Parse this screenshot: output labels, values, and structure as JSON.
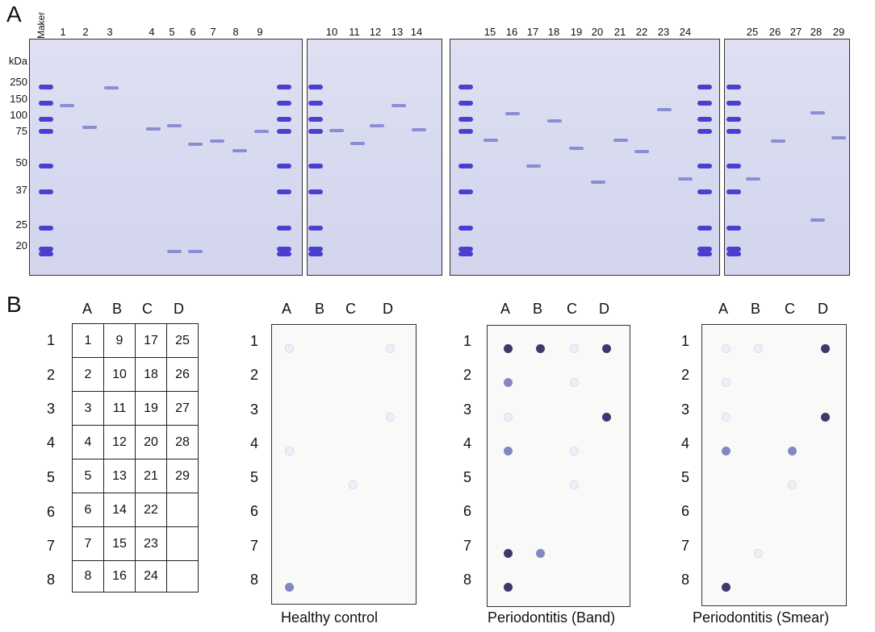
{
  "panel_a": {
    "letter": "A",
    "marker_label": "Maker",
    "unit_label": "kDa",
    "kda_ticks": [
      "250",
      "150",
      "100",
      "75",
      "50",
      "37",
      "25",
      "20"
    ],
    "lane_numbers": [
      "1",
      "2",
      "3",
      "4",
      "5",
      "6",
      "7",
      "8",
      "9",
      "10",
      "11",
      "12",
      "13",
      "14",
      "15",
      "16",
      "17",
      "18",
      "19",
      "20",
      "21",
      "22",
      "23",
      "24",
      "25",
      "26",
      "27",
      "28",
      "29"
    ]
  },
  "panel_b": {
    "letter": "B",
    "columns": [
      "A",
      "B",
      "C",
      "D"
    ],
    "rows": [
      "1",
      "2",
      "3",
      "4",
      "5",
      "6",
      "7",
      "8"
    ],
    "layout_grid": [
      [
        "1",
        "9",
        "17",
        "25"
      ],
      [
        "2",
        "10",
        "18",
        "26"
      ],
      [
        "3",
        "11",
        "19",
        "27"
      ],
      [
        "4",
        "12",
        "20",
        "28"
      ],
      [
        "5",
        "13",
        "21",
        "29"
      ],
      [
        "6",
        "14",
        "22",
        ""
      ],
      [
        "7",
        "15",
        "23",
        ""
      ],
      [
        "8",
        "16",
        "24",
        ""
      ]
    ],
    "membranes": [
      {
        "caption": "Healthy control"
      },
      {
        "caption": "Periodontitis (Band)"
      },
      {
        "caption": "Periodontitis (Smear)"
      }
    ]
  },
  "colors": {
    "gel_background": "#d8daf0",
    "marker_band": "#4a3fcf",
    "sample_band": "#7d7fd0",
    "dot_dark": "#3a3a6e",
    "dot_faint": "#c9cbe6"
  }
}
